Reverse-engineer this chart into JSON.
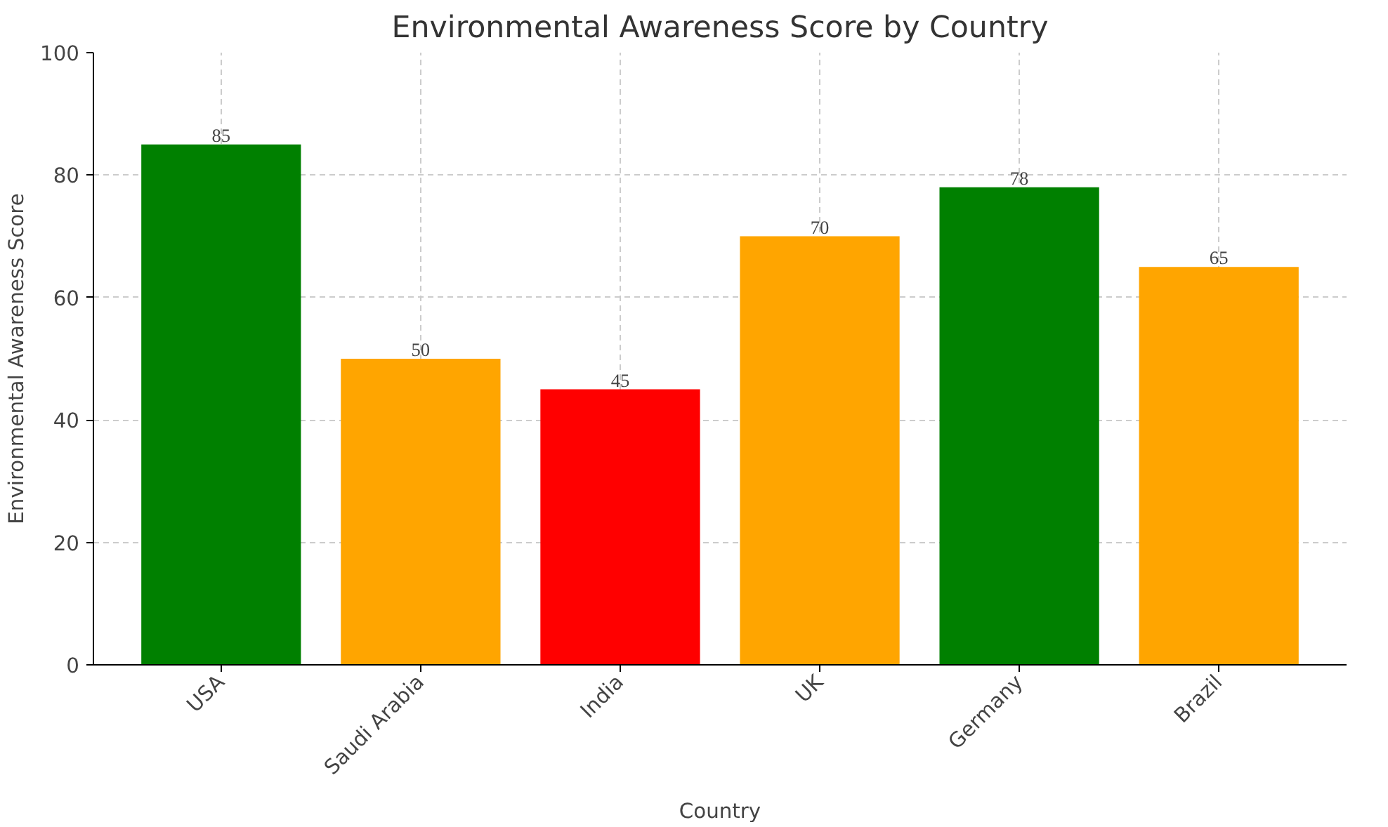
{
  "chart_data": {
    "type": "bar",
    "title": "Environmental Awareness Score by Country",
    "xlabel": "Country",
    "ylabel": "Environmental Awareness Score",
    "categories": [
      "USA",
      "Saudi Arabia",
      "India",
      "UK",
      "Germany",
      "Brazil"
    ],
    "values": [
      85,
      50,
      45,
      70,
      78,
      65
    ],
    "colors": [
      "#008000",
      "#ffa500",
      "#ff0000",
      "#ffa500",
      "#008000",
      "#ffa500"
    ],
    "ylim": [
      0,
      100
    ],
    "yticks": [
      0,
      20,
      40,
      60,
      80,
      100
    ],
    "grid": true,
    "data_labels": true
  }
}
